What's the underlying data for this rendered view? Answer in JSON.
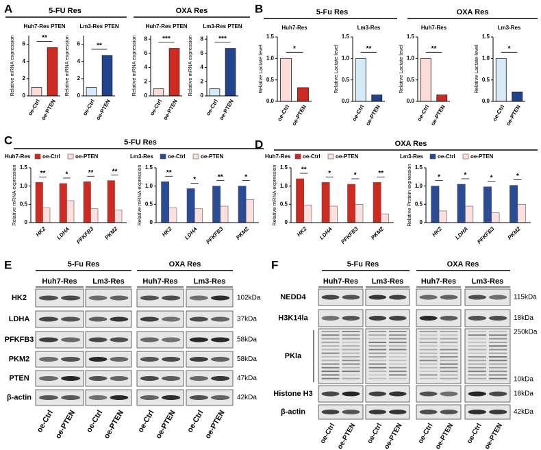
{
  "panels": [
    {
      "label": "A",
      "headers": [
        "5-FU Res",
        "OXA Res"
      ]
    },
    {
      "label": "B",
      "headers": [
        "5-Fu Res",
        "OXA Res"
      ]
    },
    {
      "label": "C",
      "headers": [
        "5-FU Res"
      ]
    },
    {
      "label": "D",
      "headers": [
        "OXA Res"
      ]
    },
    {
      "label": "E"
    },
    {
      "label": "F"
    }
  ],
  "chart_data": [
    {
      "type": "bar",
      "title": "Huh7-Res PTEN",
      "y_label": "Relative mRNA expression",
      "categories": [
        "oe-Ctrl",
        "oe-PTEN"
      ],
      "values": [
        1,
        5.6
      ],
      "colors": [
        "#fadbd8",
        "#cf2a1f"
      ],
      "ylim": [
        0,
        7
      ],
      "yticks": [
        0,
        2,
        4,
        6
      ],
      "significance": "**"
    },
    {
      "type": "bar",
      "title": "Lm3-Res PTEN",
      "y_label": "Relative mRNA expression",
      "categories": [
        "oe-Ctrl",
        "oe-PTEN"
      ],
      "values": [
        1,
        4.7
      ],
      "colors": [
        "#d6ebf8",
        "#21438e"
      ],
      "ylim": [
        0,
        7
      ],
      "yticks": [
        0,
        2,
        4,
        6
      ],
      "significance": "**"
    },
    {
      "type": "bar",
      "title": "Huh7-Res PTEN",
      "y_label": "Relative mRNA expression",
      "categories": [
        "oe-Ctrl",
        "oe-PTEN"
      ],
      "values": [
        1,
        6.7
      ],
      "colors": [
        "#fadbd8",
        "#cf2a1f"
      ],
      "ylim": [
        0,
        8.5
      ],
      "yticks": [
        0,
        2,
        4,
        6,
        8
      ],
      "significance": "***"
    },
    {
      "type": "bar",
      "title": "Lm3-Res PTEN",
      "y_label": "Relative mRNA expression",
      "categories": [
        "oe-Ctrl",
        "oe-PTEN"
      ],
      "values": [
        1,
        6.7
      ],
      "colors": [
        "#d6ebf8",
        "#21438e"
      ],
      "ylim": [
        0,
        8.5
      ],
      "yticks": [
        0,
        2,
        4,
        6,
        8
      ],
      "significance": "***"
    },
    {
      "type": "bar",
      "title": "Huh7-Res",
      "y_label": "Relative Lactate level",
      "categories": [
        "oe-Ctrl",
        "oe-PTEN"
      ],
      "values": [
        1.0,
        0.32
      ],
      "colors": [
        "#fadbd8",
        "#cf2a1f"
      ],
      "ylim": [
        0,
        1.5
      ],
      "yticks": [
        {
          "value": 0,
          "label": "0.0"
        },
        0.5,
        {
          "value": 1,
          "label": "1.0"
        },
        1.5
      ],
      "significance": "*"
    },
    {
      "type": "bar",
      "title": "Lm3-Res",
      "y_label": "Relative Lactate level",
      "categories": [
        "oe-Ctrl",
        "oe-PTEN"
      ],
      "values": [
        1.0,
        0.15
      ],
      "colors": [
        "#d6ebf8",
        "#21438e"
      ],
      "ylim": [
        0,
        1.5
      ],
      "yticks": [
        {
          "value": 0,
          "label": "0.0"
        },
        0.5,
        {
          "value": 1,
          "label": "1.0"
        },
        1.5
      ],
      "significance": "**"
    },
    {
      "type": "bar",
      "title": "Huh7-Res",
      "y_label": "Relative Lactate level",
      "categories": [
        "oe-Ctrl",
        "oe-PTEN"
      ],
      "values": [
        1.0,
        0.15
      ],
      "colors": [
        "#fadbd8",
        "#cf2a1f"
      ],
      "ylim": [
        0,
        1.5
      ],
      "yticks": [
        {
          "value": 0,
          "label": "0.0"
        },
        0.5,
        {
          "value": 1,
          "label": "1.0"
        },
        1.5
      ],
      "significance": "**"
    },
    {
      "type": "bar",
      "title": "Lm3-Res",
      "y_label": "Relative Lactate level",
      "categories": [
        "oe-Ctrl",
        "oe-PTEN"
      ],
      "values": [
        1.0,
        0.22
      ],
      "colors": [
        "#d6ebf8",
        "#21438e"
      ],
      "ylim": [
        0,
        1.5
      ],
      "yticks": [
        {
          "value": 0,
          "label": "0.0"
        },
        0.5,
        {
          "value": 1,
          "label": "1.0"
        },
        1.5
      ],
      "significance": "*"
    },
    {
      "type": "grouped_bar",
      "title": "Huh7-Res",
      "y_label": "Relative mRNA expression",
      "categories": [
        "HK2",
        "LDHA",
        "PFKFB3",
        "PKM2"
      ],
      "series": [
        {
          "name": "oe-Ctrl",
          "color": "#cf2a1f",
          "values": [
            1.1,
            1.07,
            1.12,
            1.15
          ]
        },
        {
          "name": "oe-PTEN",
          "color": "#fbe0dd",
          "values": [
            0.4,
            0.6,
            0.38,
            0.34
          ]
        }
      ],
      "ylim": [
        0,
        1.5
      ],
      "yticks": [
        0,
        0.5,
        {
          "value": 1,
          "label": "1.0"
        },
        1.5
      ],
      "significance": [
        "**",
        "*",
        "**",
        "**"
      ]
    },
    {
      "type": "grouped_bar",
      "title": "Lm3-Res",
      "y_label": "Relative mRNA expression",
      "categories": [
        "HK2",
        "LDHA",
        "PFKFB3",
        "PKM2"
      ],
      "series": [
        {
          "name": "oe-Ctrl",
          "color": "#2a4b96",
          "values": [
            1.12,
            0.93,
            1.0,
            1.0
          ]
        },
        {
          "name": "oe-PTEN",
          "color": "#fbe0dd",
          "values": [
            0.4,
            0.38,
            0.45,
            0.63
          ]
        }
      ],
      "ylim": [
        0,
        1.5
      ],
      "yticks": [
        0,
        0.5,
        {
          "value": 1,
          "label": "1.0"
        },
        1.5
      ],
      "significance": [
        "**",
        "*",
        "**",
        "*"
      ]
    },
    {
      "type": "grouped_bar",
      "title": "Huh7-Res",
      "y_label": "Relative mRNA expression",
      "categories": [
        "HK2",
        "LDHA",
        "PFKFB3",
        "PKM2"
      ],
      "series": [
        {
          "name": "oe-Ctrl",
          "color": "#cf2a1f",
          "values": [
            1.2,
            1.1,
            1.05,
            1.1
          ]
        },
        {
          "name": "oe-PTEN",
          "color": "#fbe0dd",
          "values": [
            0.48,
            0.45,
            0.5,
            0.24
          ]
        }
      ],
      "ylim": [
        0,
        1.5
      ],
      "yticks": [
        0,
        0.5,
        {
          "value": 1,
          "label": "1.0"
        },
        1.5
      ],
      "significance": [
        "**",
        "*",
        "*",
        "**"
      ]
    },
    {
      "type": "grouped_bar",
      "title": "Lm3-Res",
      "y_label": "Relative Protein expression",
      "categories": [
        "HK2",
        "LDHA",
        "PFKFB3",
        "PKM2"
      ],
      "series": [
        {
          "name": "oe-Ctrl",
          "color": "#2a4b96",
          "values": [
            1.0,
            1.05,
            0.98,
            1.02
          ]
        },
        {
          "name": "oe-PTEN",
          "color": "#fbe0dd",
          "values": [
            0.32,
            0.45,
            0.27,
            0.5
          ]
        }
      ],
      "ylim": [
        0,
        1.5
      ],
      "yticks": [
        0,
        0.5,
        {
          "value": 1,
          "label": "1.0"
        },
        1.5
      ],
      "significance": [
        "*",
        "*",
        "*",
        "*"
      ]
    }
  ],
  "blots": {
    "E": {
      "headers": [
        "5-Fu Res",
        "OXA Res"
      ],
      "cell_lines": [
        "Huh7-Res",
        "Lm3-Res",
        "Huh7-Res",
        "Lm3-Res"
      ],
      "rows": [
        {
          "protein": "HK2",
          "sizes": [
            "102kDa"
          ]
        },
        {
          "protein": "LDHA",
          "sizes": [
            "37kDa"
          ]
        },
        {
          "protein": "PFKFB3",
          "sizes": [
            "58kDa"
          ]
        },
        {
          "protein": "PKM2",
          "sizes": [
            "58kDa"
          ]
        },
        {
          "protein": "PTEN",
          "sizes": [
            "47kDa"
          ]
        },
        {
          "protein": "β-actin",
          "sizes": [
            "42kDa"
          ]
        }
      ],
      "lanes": [
        "oe-Ctrl",
        "oe-PTEN",
        "oe-Ctrl",
        "oe-PTEN",
        "oe-Ctrl",
        "oe-PTEN",
        "oe-Ctrl",
        "oe-PTEN"
      ]
    },
    "F": {
      "headers": [
        "5-Fu Res",
        "OXA Res"
      ],
      "cell_lines": [
        "Huh7-Res",
        "Lm3-Res",
        "Huh7-Res",
        "Lm3-Res"
      ],
      "rows": [
        {
          "protein": "NEDD4",
          "sizes": [
            "115kDa"
          ]
        },
        {
          "protein": "H3K14la",
          "sizes": [
            "18kDa"
          ]
        },
        {
          "protein": "PKla",
          "sizes": [
            "250kDa",
            "10kDa"
          ]
        },
        {
          "protein": "Histone H3",
          "sizes": [
            "18kDa"
          ]
        },
        {
          "protein": "β-actin",
          "sizes": [
            "42kDa"
          ]
        }
      ],
      "lanes": [
        "oe-Ctrl",
        "oe-PTEN",
        "oe-Ctrl",
        "oe-PTEN",
        "oe-Ctrl",
        "oe-PTEN",
        "oe-Ctrl",
        "oe-PTEN"
      ]
    }
  }
}
